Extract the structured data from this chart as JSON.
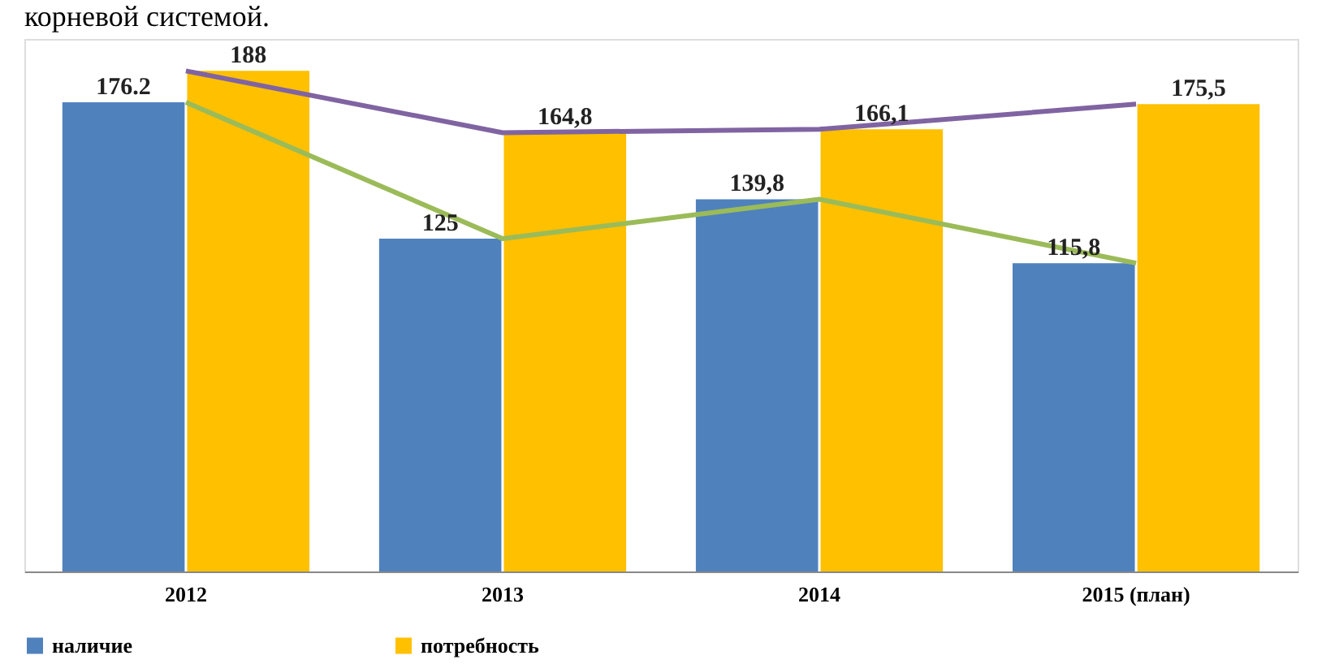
{
  "chart_data": {
    "type": "bar",
    "annotations": [
      "корневой системой."
    ],
    "categories": [
      "2012",
      "2013",
      "2014",
      "2015 (план)"
    ],
    "series": [
      {
        "name": "наличие",
        "color": "#4f81bd",
        "values": [
          176.2,
          125,
          139.8,
          115.8
        ],
        "value_labels": [
          "176.2",
          "125",
          "139,8",
          "115,8"
        ]
      },
      {
        "name": "потребность",
        "color": "#ffc000",
        "values": [
          188,
          164.8,
          166.1,
          175.5
        ],
        "value_labels": [
          "188",
          "164,8",
          "166,1",
          "175,5"
        ]
      },
      {
        "type": "line",
        "color": "#8064a2",
        "values": [
          188,
          164.8,
          166.1,
          175.5
        ]
      },
      {
        "type": "line",
        "color": "#9bbb59",
        "values": [
          176.2,
          125,
          139.8,
          115.8
        ]
      }
    ],
    "legend": "bottom",
    "grid": false
  }
}
